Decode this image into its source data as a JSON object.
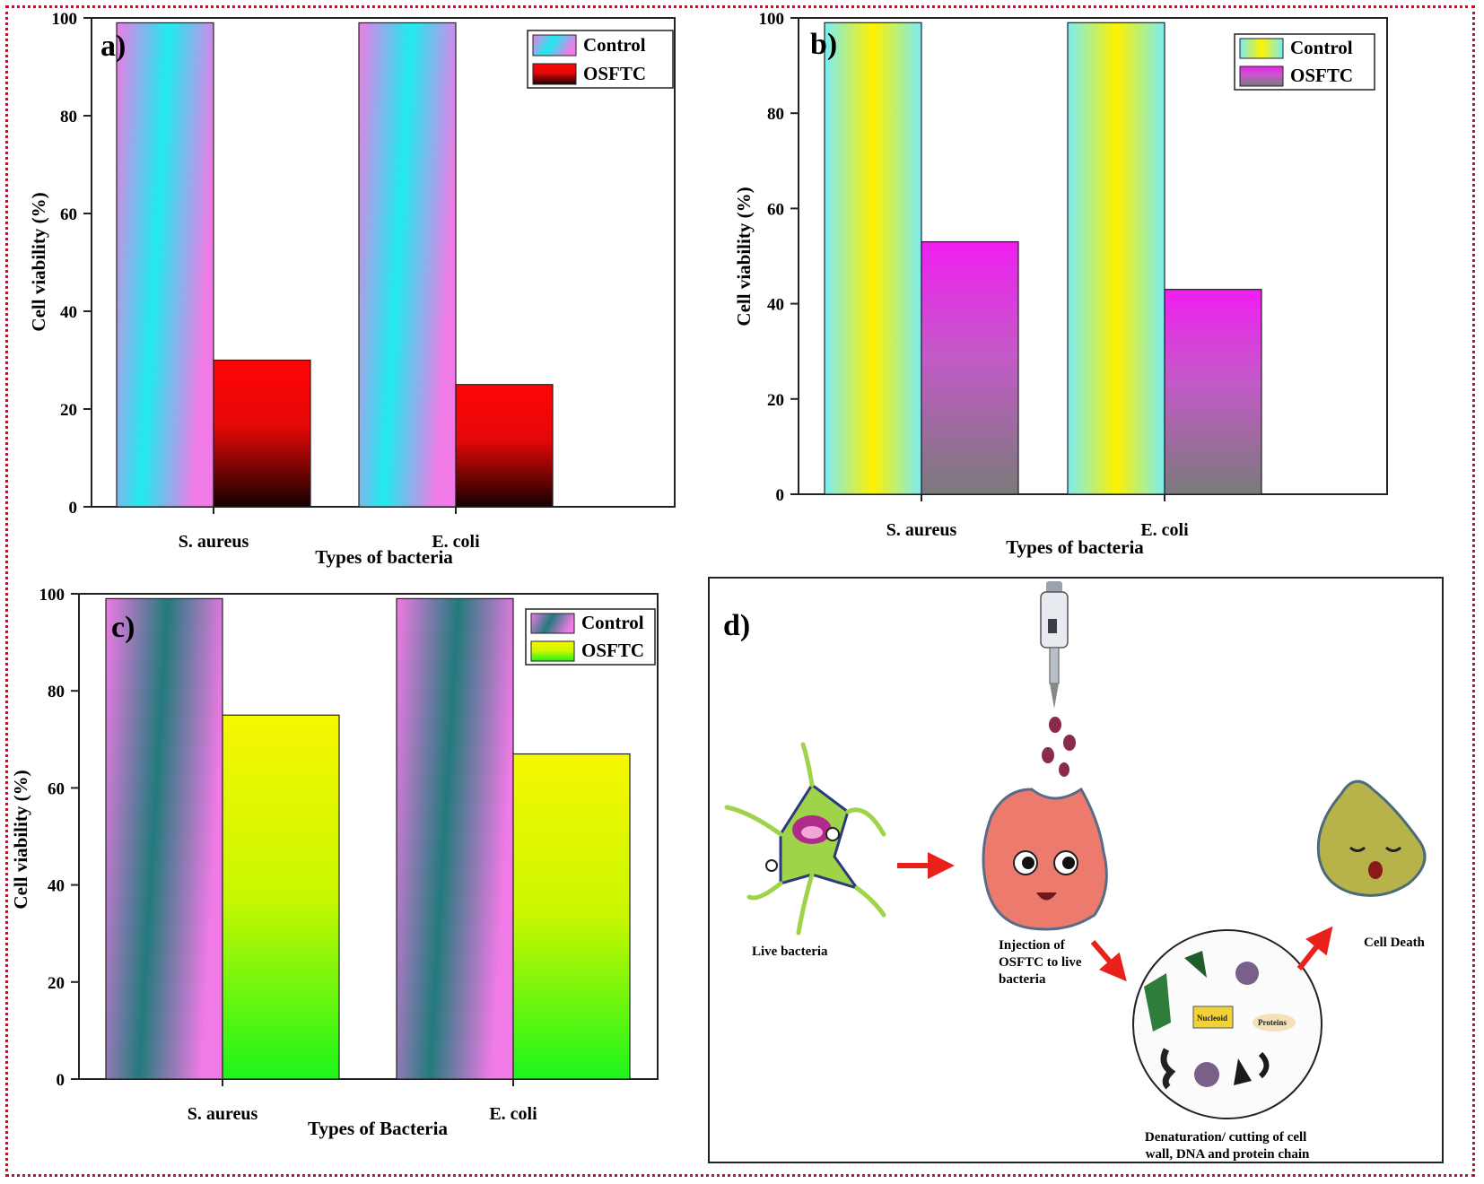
{
  "chart_data": [
    {
      "type": "bar",
      "panel": "a)",
      "categories": [
        "S. aureus",
        "E. coli"
      ],
      "series": [
        {
          "name": "Control",
          "values": [
            99,
            99
          ]
        },
        {
          "name": "OSFTC",
          "values": [
            30,
            25
          ]
        }
      ],
      "xlabel": "Types of bacteria",
      "ylabel": "Cell viability (%)",
      "ylim": [
        0,
        100
      ],
      "yticks": [
        0,
        20,
        40,
        60,
        80,
        100
      ],
      "legend": "top-right",
      "grid": false
    },
    {
      "type": "bar",
      "panel": "b)",
      "categories": [
        "S. aureus",
        "E. coli"
      ],
      "series": [
        {
          "name": "Control",
          "values": [
            99,
            99
          ]
        },
        {
          "name": "OSFTC",
          "values": [
            53,
            43
          ]
        }
      ],
      "xlabel": "Types of bacteria",
      "ylabel": "Cell viability (%)",
      "ylim": [
        0,
        100
      ],
      "yticks": [
        0,
        20,
        40,
        60,
        80,
        100
      ],
      "legend": "top-right",
      "grid": false
    },
    {
      "type": "bar",
      "panel": "c)",
      "categories": [
        "S. aureus",
        "E. coli"
      ],
      "series": [
        {
          "name": "Control",
          "values": [
            99,
            99
          ]
        },
        {
          "name": "OSFTC",
          "values": [
            75,
            67
          ]
        }
      ],
      "xlabel": "Types of Bacteria",
      "ylabel": "Cell viability (%)",
      "ylim": [
        0,
        100
      ],
      "yticks": [
        0,
        20,
        40,
        60,
        80,
        100
      ],
      "legend": "top-right",
      "grid": false
    }
  ],
  "scheme": {
    "panel": "d)",
    "live_label": "Live bacteria",
    "injection_label": "Injection of OSFTC to live bacteria",
    "injection_lines": [
      "Injection of",
      "OSFTC to live",
      "bacteria"
    ],
    "denaturation_lines": [
      "Denaturation/ cutting of cell",
      "wall, DNA and protein chain"
    ],
    "death_label": "Cell Death",
    "inset_words": [
      "Nucleoid",
      "Proteins"
    ]
  },
  "colors": {
    "border": "#c8102e",
    "arrow": "#e8221b",
    "live_bacterium": "#9fd44a",
    "treated_bacterium": "#ec7b6e",
    "dead_bacterium": "#b7b34a"
  }
}
